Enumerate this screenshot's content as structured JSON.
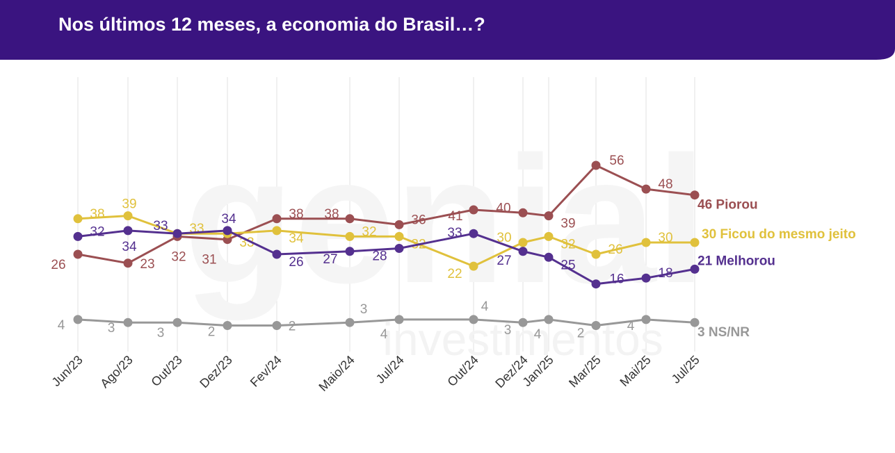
{
  "title": "Nos últimos 12 meses, a economia do Brasil…?",
  "watermark": {
    "line1": "genial",
    "line2": "investimentos"
  },
  "colors": {
    "header": "#3a1480",
    "piorou": "#9b4f52",
    "ficou": "#e0c13c",
    "melhorou": "#54308f",
    "nsnr": "#989898",
    "grid": "#e2e2e2"
  },
  "chart_data": {
    "type": "line",
    "categories": [
      "Jun/23",
      "Ago/23",
      "Out/23",
      "Dez/23",
      "Fev/24",
      "Maio/24",
      "Jul/24",
      "Out/24",
      "Dez/24",
      "Jan/25",
      "Mar/25",
      "Mai/25",
      "Jul/25"
    ],
    "ylim": [
      0,
      60
    ],
    "grid": "vertical",
    "series": [
      {
        "key": "piorou",
        "name": "Piorou",
        "end_label": "46 Piorou",
        "values": [
          26,
          23,
          32,
          31,
          38,
          38,
          36,
          41,
          40,
          39,
          56,
          48,
          46
        ]
      },
      {
        "key": "ficou",
        "name": "Ficou do mesmo jeito",
        "end_label": "30 Ficou do mesmo jeito",
        "values": [
          38,
          39,
          33,
          33,
          34,
          32,
          32,
          22,
          30,
          32,
          26,
          30,
          30
        ]
      },
      {
        "key": "melhorou",
        "name": "Melhorou",
        "end_label": "21 Melhorou",
        "values": [
          32,
          34,
          33,
          34,
          26,
          27,
          28,
          33,
          27,
          25,
          16,
          18,
          21
        ]
      },
      {
        "key": "nsnr",
        "name": "NS/NR",
        "end_label": "3 NS/NR",
        "values": [
          4,
          3,
          3,
          2,
          2,
          3,
          4,
          4,
          3,
          4,
          2,
          4,
          3
        ]
      }
    ]
  }
}
